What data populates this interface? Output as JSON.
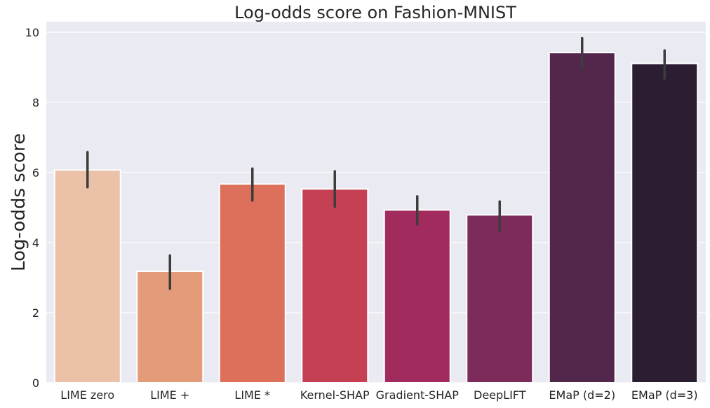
{
  "chart_data": {
    "type": "bar",
    "title": "Log-odds score on Fashion-MNIST",
    "xlabel": "",
    "ylabel": "Log-odds score",
    "categories": [
      "LIME zero",
      "LIME +",
      "LIME *",
      "Kernel-SHAP",
      "Gradient-SHAP",
      "DeepLIFT",
      "EMaP (d=2)",
      "EMaP (d=3)"
    ],
    "values": [
      6.07,
      3.18,
      5.67,
      5.53,
      4.93,
      4.79,
      9.42,
      9.11
    ],
    "error_low": [
      5.58,
      2.68,
      5.2,
      5.02,
      4.52,
      4.34,
      8.95,
      8.68
    ],
    "error_high": [
      6.58,
      3.63,
      6.11,
      6.03,
      5.32,
      5.17,
      9.83,
      9.48
    ],
    "colors": [
      "#ebc1a7",
      "#e49b7a",
      "#dd705a",
      "#c54052",
      "#a22b5d",
      "#7c2b5a",
      "#53264c",
      "#2c1e32"
    ],
    "ylim": [
      0,
      10.3
    ],
    "yticks": [
      "0",
      "2",
      "4",
      "6",
      "8",
      "10"
    ],
    "grid": true,
    "background": "#eaeaf2",
    "grid_color": "#ffffff",
    "error_bar_color": "#3d3d3d"
  }
}
